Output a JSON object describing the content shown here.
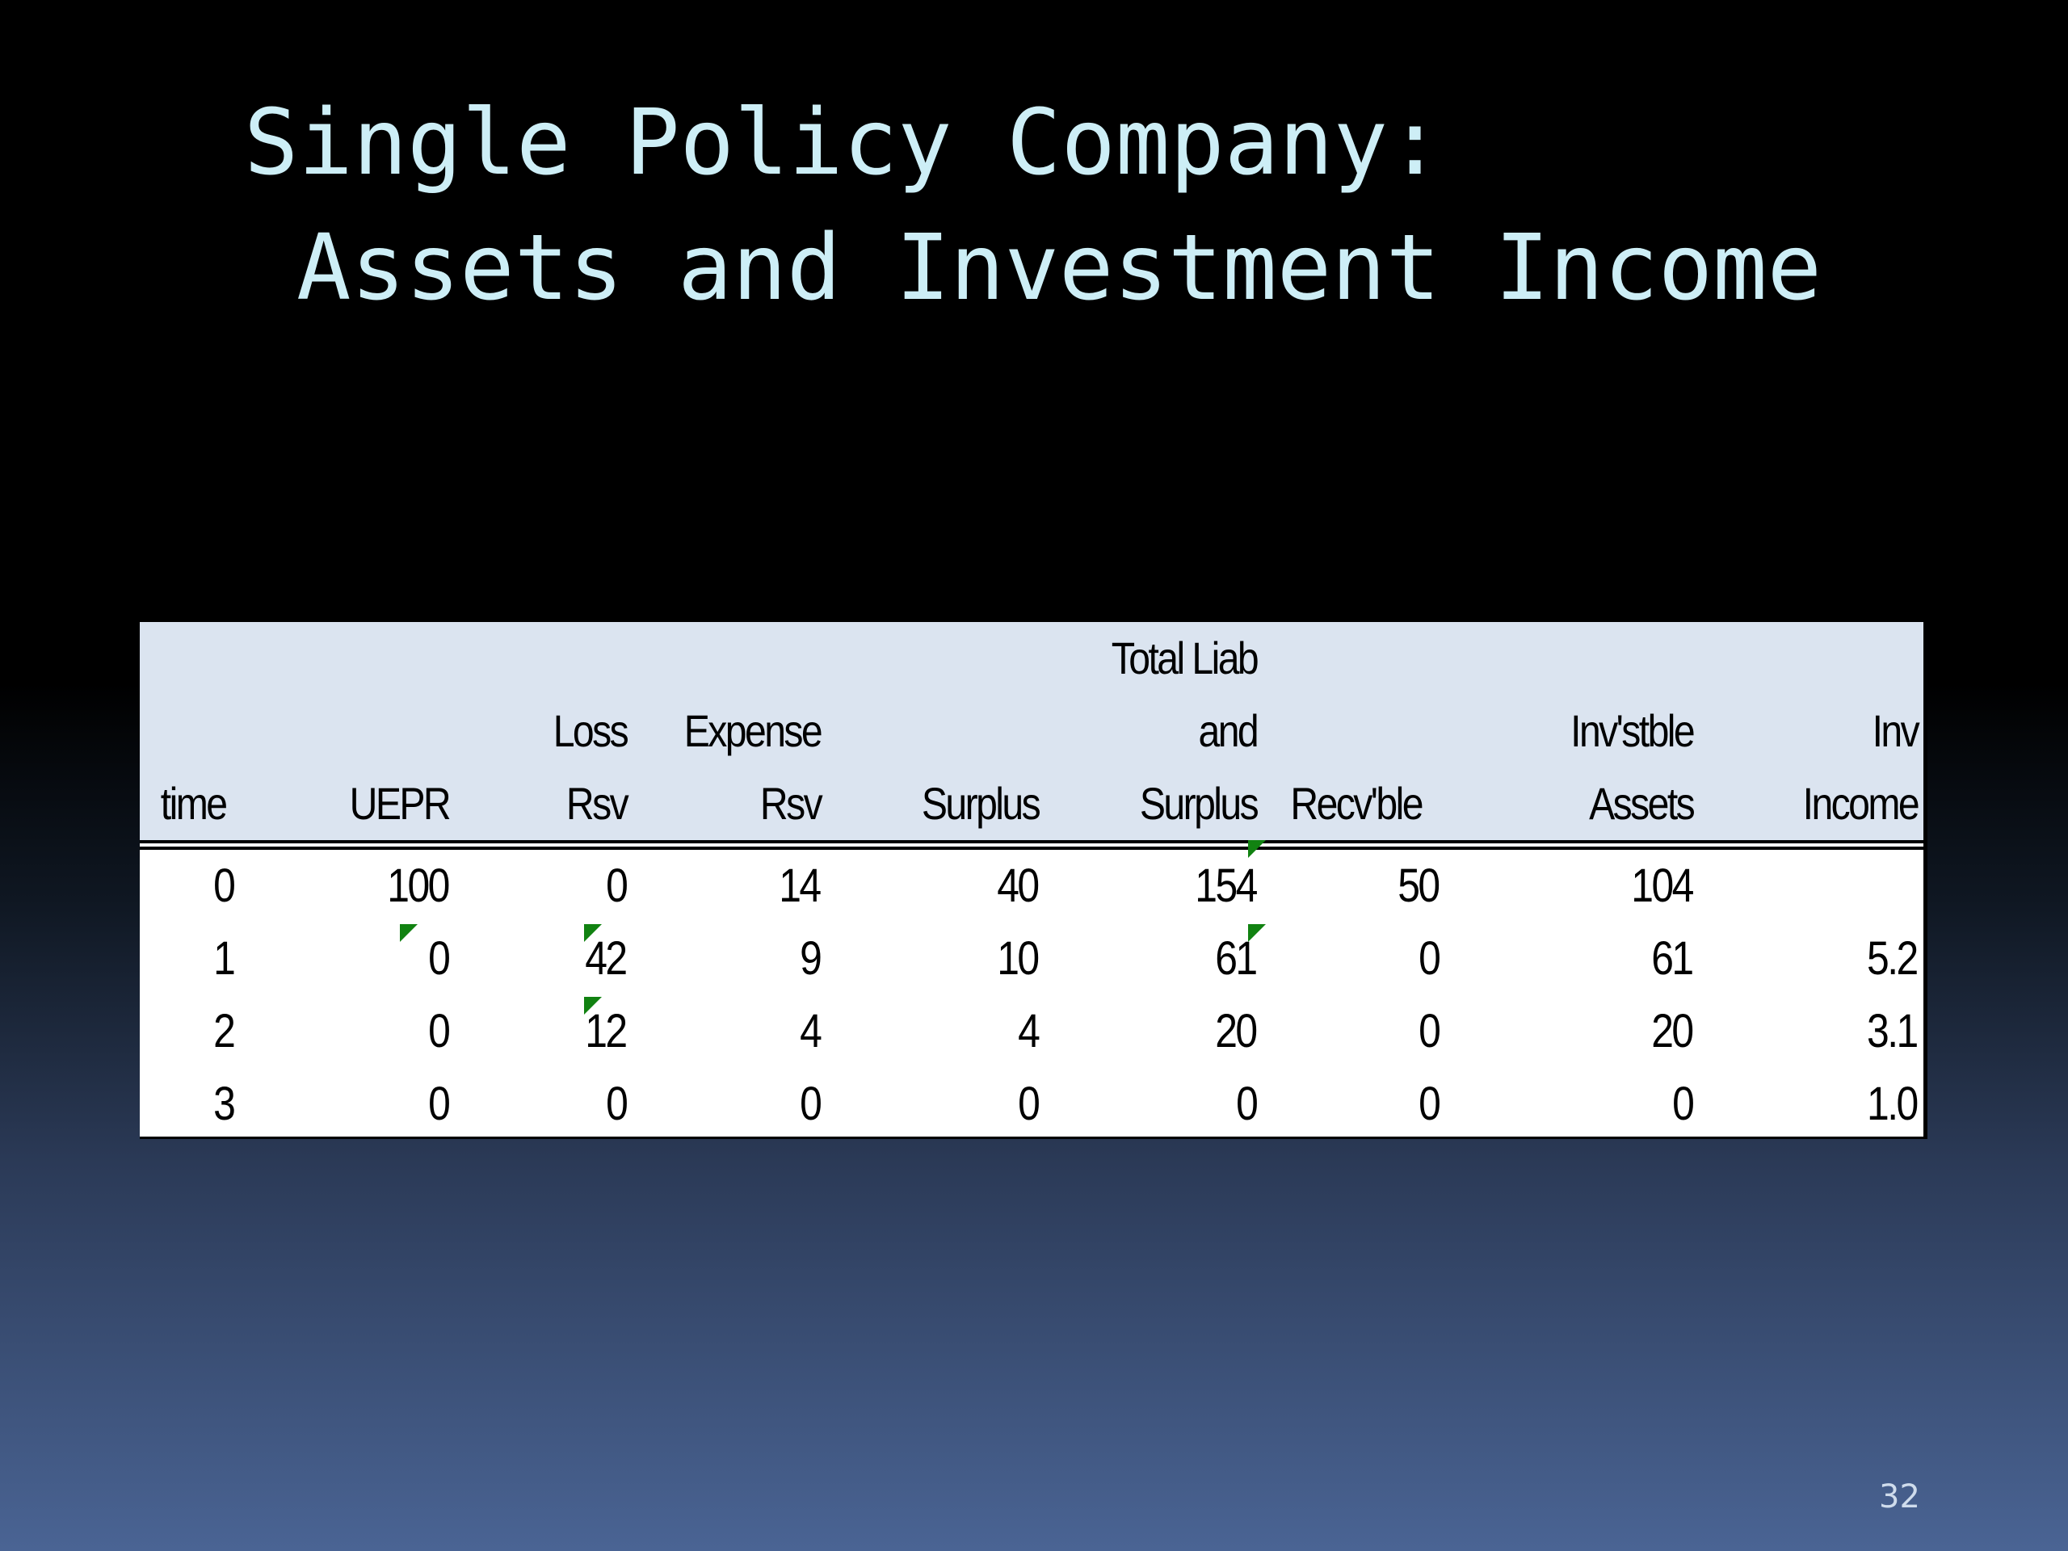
{
  "slide": {
    "title_line1": "Single Policy Company:",
    "title_line2": "Assets and Investment Income",
    "page_number": "32"
  },
  "table": {
    "header_lines": [
      [
        "",
        "",
        "time"
      ],
      [
        "",
        "",
        "UEPR"
      ],
      [
        "",
        "Loss",
        "Rsv"
      ],
      [
        "",
        "Expense",
        "Rsv"
      ],
      [
        "",
        "",
        "Surplus"
      ],
      [
        "Total Liab",
        "and",
        "Surplus"
      ],
      [
        "",
        "",
        "Recv'ble"
      ],
      [
        "",
        "Inv'stble",
        "Assets"
      ],
      [
        "",
        "Inv",
        "Income"
      ]
    ],
    "rows": [
      [
        "0",
        "100",
        "0",
        "14",
        "40",
        "154",
        "50",
        "104",
        ""
      ],
      [
        "1",
        "0",
        "42",
        "9",
        "10",
        "61",
        "0",
        "61",
        "5.2"
      ],
      [
        "2",
        "0",
        "12",
        "4",
        "4",
        "20",
        "0",
        "20",
        "3.1"
      ],
      [
        "3",
        "0",
        "0",
        "0",
        "0",
        "0",
        "0",
        "0",
        "1.0"
      ]
    ],
    "comment_flag_color": "#118211",
    "header_bg": "#dbe4f0"
  }
}
